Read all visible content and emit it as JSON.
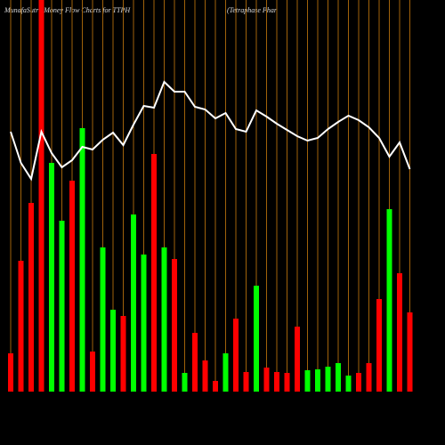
{
  "chart_data": {
    "type": "bar",
    "title": "MunafaSutra Money Flow Charts for TTPH",
    "subtitle": "(Tetraphase    Phar",
    "categories": [
      null,
      null,
      null,
      null,
      null,
      null,
      null,
      null,
      null,
      null,
      null,
      null,
      null,
      null,
      null,
      null,
      null,
      null,
      null,
      null,
      null,
      null,
      null,
      null,
      null,
      null,
      null,
      null,
      null,
      null,
      null,
      null,
      null,
      null,
      null,
      null,
      null,
      null,
      null,
      null
    ],
    "values": [
      43,
      147,
      212,
      440,
      257,
      192,
      237,
      296,
      45,
      162,
      92,
      85,
      199,
      154,
      267,
      162,
      149,
      21,
      66,
      35,
      12,
      43,
      82,
      22,
      119,
      27,
      22,
      21,
      73,
      24,
      25,
      28,
      32,
      18,
      21,
      32,
      104,
      205,
      133,
      89
    ],
    "colors": [
      "#ff0000",
      "#ff0000",
      "#ff0000",
      "#ff0000",
      "#00ff00",
      "#00ff00",
      "#ff0000",
      "#00ff00",
      "#ff0000",
      "#00ff00",
      "#00ff00",
      "#ff0000",
      "#00ff00",
      "#00ff00",
      "#ff0000",
      "#00ff00",
      "#ff0000",
      "#00ff00",
      "#ff0000",
      "#ff0000",
      "#ff0000",
      "#00ff00",
      "#ff0000",
      "#ff0000",
      "#00ff00",
      "#ff0000",
      "#ff0000",
      "#ff0000",
      "#ff0000",
      "#00ff00",
      "#00ff00",
      "#00ff00",
      "#00ff00",
      "#00ff00",
      "#ff0000",
      "#ff0000",
      "#ff0000",
      "#00ff00",
      "#ff0000",
      "#ff0000"
    ],
    "line": {
      "color": "#ffffff",
      "values": [
        292,
        257,
        239,
        292,
        268,
        252,
        260,
        275,
        272,
        283,
        291,
        277,
        300,
        321,
        319,
        348,
        337,
        337,
        320,
        317,
        307,
        313,
        295,
        292,
        316,
        309,
        301,
        294,
        287,
        282,
        285,
        295,
        303,
        310,
        305,
        297,
        285,
        264,
        280,
        250
      ]
    },
    "ylim": [
      0,
      440
    ],
    "grid_color": "#a0620a"
  }
}
